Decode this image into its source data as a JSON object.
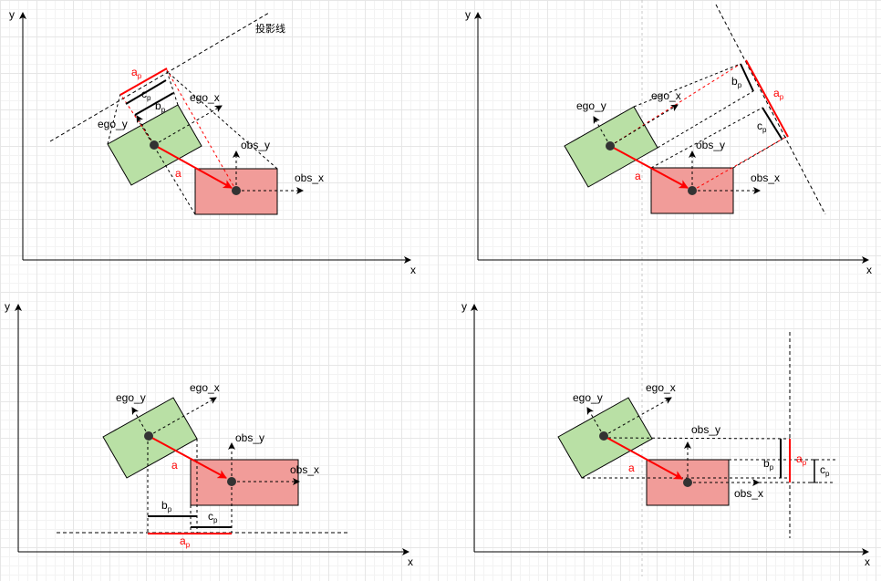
{
  "labels": {
    "x": "x",
    "y": "y",
    "ego_x": "ego_x",
    "ego_y": "ego_y",
    "obs_x": "obs_x",
    "obs_y": "obs_y",
    "a": "a",
    "a_p": "a",
    "b_p": "b",
    "c_p": "c",
    "sub_p": "p",
    "projection_line": "投影线"
  },
  "colors": {
    "ego_fill": "#b9e0a5",
    "obs_fill": "#f19c99",
    "highlight": "#ff0000"
  }
}
